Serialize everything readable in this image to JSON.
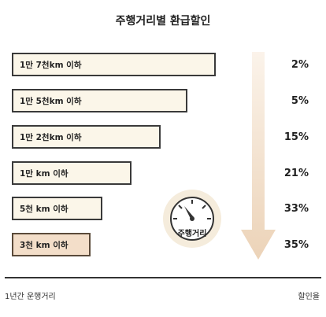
{
  "title": "주행거리별 환급할인",
  "rows": [
    {
      "label": "1만 7천km 이하",
      "discount": "2%"
    },
    {
      "label": "1만 5천km 이하",
      "discount": "5%"
    },
    {
      "label": "1만 2천km 이하",
      "discount": "15%"
    },
    {
      "label": "1만 km 이하",
      "discount": "21%"
    },
    {
      "label": "5천 km 이하",
      "discount": "33%"
    },
    {
      "label": "3천 km 이하",
      "discount": "35%"
    }
  ],
  "gauge_label": "주행거리",
  "footer": {
    "left": "1년간 운행거리",
    "right": "할인율"
  },
  "colors": {
    "bar_fill": "#fbf6e9",
    "last_bar_fill": "#f3dec9",
    "arrow": "#efd9c0",
    "gauge_ring": "#f5ecdc"
  },
  "icons": [
    "odometer-gauge-icon",
    "down-arrow-icon"
  ]
}
